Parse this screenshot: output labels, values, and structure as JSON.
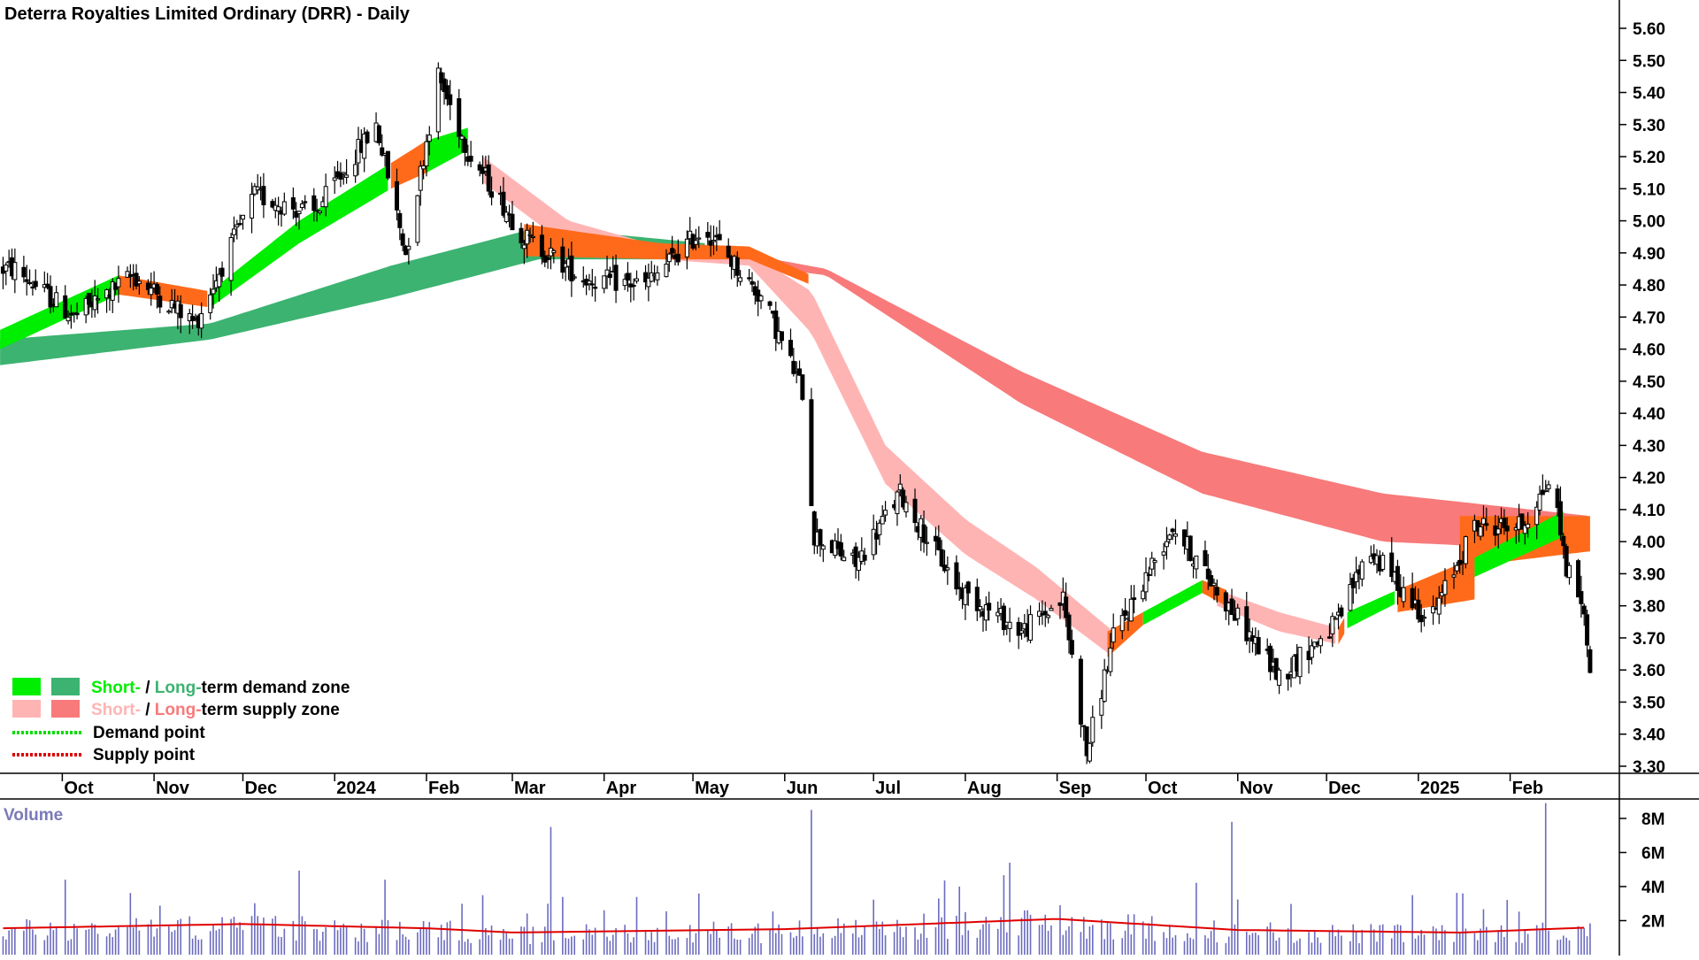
{
  "chart_data": {
    "type": "candlestick",
    "title": "Deterra Royalties Limited Ordinary (DRR) - Daily",
    "price_axis": {
      "ticks": [
        "5.60",
        "5.50",
        "5.40",
        "5.30",
        "5.20",
        "5.10",
        "5.00",
        "4.90",
        "4.80",
        "4.70",
        "4.60",
        "4.50",
        "4.40",
        "4.30",
        "4.20",
        "4.10",
        "4.00",
        "3.90",
        "3.80",
        "3.70",
        "3.60",
        "3.50",
        "3.40",
        "3.30"
      ],
      "range": [
        3.27,
        5.66
      ]
    },
    "x_axis": {
      "labels": [
        "Oct",
        "Nov",
        "Dec",
        "2024",
        "Feb",
        "Mar",
        "Apr",
        "May",
        "Jun",
        "Jul",
        "Aug",
        "Sep",
        "Oct",
        "Nov",
        "Dec",
        "2025",
        "Feb"
      ]
    },
    "volume_panel": {
      "label": "Volume",
      "ticks": [
        "8M",
        "6M",
        "4M",
        "2M"
      ],
      "range": [
        0,
        9
      ]
    },
    "price_anchors": [
      {
        "date": "2023-09-15",
        "close": 4.85
      },
      {
        "date": "2023-10-05",
        "close": 4.7
      },
      {
        "date": "2023-10-25",
        "close": 4.83
      },
      {
        "date": "2023-11-15",
        "close": 4.68
      },
      {
        "date": "2023-12-05",
        "close": 5.08
      },
      {
        "date": "2023-12-25",
        "close": 5.02
      },
      {
        "date": "2024-01-15",
        "close": 5.3
      },
      {
        "date": "2024-01-25",
        "close": 4.9
      },
      {
        "date": "2024-02-05",
        "close": 5.45
      },
      {
        "date": "2024-02-15",
        "close": 5.22
      },
      {
        "date": "2024-03-05",
        "close": 4.95
      },
      {
        "date": "2024-03-25",
        "close": 4.82
      },
      {
        "date": "2024-04-15",
        "close": 4.8
      },
      {
        "date": "2024-05-05",
        "close": 4.98
      },
      {
        "date": "2024-05-25",
        "close": 4.75
      },
      {
        "date": "2024-06-07",
        "close": 4.47
      },
      {
        "date": "2024-06-11",
        "close": 4.02
      },
      {
        "date": "2024-06-25",
        "close": 3.93
      },
      {
        "date": "2024-07-10",
        "close": 4.15
      },
      {
        "date": "2024-07-30",
        "close": 3.85
      },
      {
        "date": "2024-08-20",
        "close": 3.72
      },
      {
        "date": "2024-09-03",
        "close": 3.82
      },
      {
        "date": "2024-09-11",
        "close": 3.34
      },
      {
        "date": "2024-09-20",
        "close": 3.7
      },
      {
        "date": "2024-10-10",
        "close": 4.05
      },
      {
        "date": "2024-10-25",
        "close": 3.85
      },
      {
        "date": "2024-11-15",
        "close": 3.58
      },
      {
        "date": "2024-12-05",
        "close": 3.75
      },
      {
        "date": "2024-12-15",
        "close": 3.98
      },
      {
        "date": "2025-01-05",
        "close": 3.75
      },
      {
        "date": "2025-01-20",
        "close": 4.05
      },
      {
        "date": "2025-02-05",
        "close": 4.05
      },
      {
        "date": "2025-02-15",
        "close": 4.2
      },
      {
        "date": "2025-02-20",
        "close": 3.92
      },
      {
        "date": "2025-02-25",
        "close": 3.82
      },
      {
        "date": "2025-02-28",
        "close": 3.62
      }
    ],
    "bands": [
      {
        "kind": "long-term demand zone",
        "color": "#3cb371",
        "segments": [
          {
            "from": "2023-09-10",
            "to": "2024-05-05",
            "upper": [
              [
                "2023-09-10",
                4.63
              ],
              [
                "2023-11-20",
                4.68
              ],
              [
                "2024-01-20",
                4.86
              ],
              [
                "2024-03-10",
                4.98
              ],
              [
                "2024-05-05",
                4.93
              ]
            ],
            "lower": [
              [
                "2023-09-10",
                4.55
              ],
              [
                "2023-11-20",
                4.63
              ],
              [
                "2024-01-20",
                4.76
              ],
              [
                "2024-03-10",
                4.88
              ],
              [
                "2024-05-05",
                4.88
              ]
            ]
          }
        ]
      },
      {
        "kind": "long-term supply zone",
        "color": "#f87a7a",
        "segments": [
          {
            "from": "2024-05-05",
            "to": "2025-02-28",
            "upper": [
              [
                "2024-05-05",
                4.92
              ],
              [
                "2024-06-15",
                4.85
              ],
              [
                "2024-08-20",
                4.53
              ],
              [
                "2024-10-20",
                4.28
              ],
              [
                "2024-12-20",
                4.15
              ],
              [
                "2025-02-28",
                4.08
              ]
            ],
            "lower": [
              [
                "2024-05-05",
                4.88
              ],
              [
                "2024-06-15",
                4.83
              ],
              [
                "2024-08-20",
                4.43
              ],
              [
                "2024-10-20",
                4.15
              ],
              [
                "2024-12-20",
                4.0
              ],
              [
                "2025-02-28",
                3.97
              ]
            ]
          }
        ]
      },
      {
        "kind": "short-term demand zone",
        "color": "#00ee00",
        "segments": [
          {
            "from": "2023-09-10",
            "to": "2023-10-20",
            "upper": [
              [
                "2023-09-10",
                4.66
              ],
              [
                "2023-10-20",
                4.83
              ]
            ],
            "lower": [
              [
                "2023-09-10",
                4.6
              ],
              [
                "2023-10-20",
                4.77
              ]
            ]
          },
          {
            "from": "2023-11-20",
            "to": "2024-01-20",
            "upper": [
              [
                "2023-11-20",
                4.78
              ],
              [
                "2023-12-20",
                5.0
              ],
              [
                "2024-01-20",
                5.18
              ]
            ],
            "lower": [
              [
                "2023-11-20",
                4.73
              ],
              [
                "2023-12-20",
                4.93
              ],
              [
                "2024-01-20",
                5.1
              ]
            ]
          },
          {
            "from": "2024-02-01",
            "to": "2024-02-15",
            "upper": [
              [
                "2024-02-01",
                5.25
              ],
              [
                "2024-02-15",
                5.29
              ]
            ],
            "lower": [
              [
                "2024-02-01",
                5.15
              ],
              [
                "2024-02-15",
                5.22
              ]
            ]
          },
          {
            "from": "2024-09-30",
            "to": "2024-10-20",
            "upper": [
              [
                "2024-09-30",
                3.78
              ],
              [
                "2024-10-20",
                3.88
              ]
            ],
            "lower": [
              [
                "2024-09-30",
                3.74
              ],
              [
                "2024-10-20",
                3.84
              ]
            ]
          },
          {
            "from": "2024-12-08",
            "to": "2024-12-25",
            "upper": [
              [
                "2024-12-08",
                3.78
              ],
              [
                "2024-12-25",
                3.85
              ]
            ],
            "lower": [
              [
                "2024-12-08",
                3.73
              ],
              [
                "2024-12-25",
                3.81
              ]
            ]
          },
          {
            "from": "2025-01-20",
            "to": "2025-02-20",
            "upper": [
              [
                "2025-01-20",
                3.95
              ],
              [
                "2025-02-20",
                4.1
              ]
            ],
            "lower": [
              [
                "2025-01-20",
                3.89
              ],
              [
                "2025-02-20",
                4.02
              ]
            ]
          }
        ]
      },
      {
        "kind": "short-term supply zone",
        "color": "#ffb4b4",
        "segments": [
          {
            "from": "2024-02-20",
            "to": "2024-09-20",
            "upper": [
              [
                "2024-02-20",
                5.2
              ],
              [
                "2024-03-20",
                5.0
              ],
              [
                "2024-04-20",
                4.92
              ],
              [
                "2024-05-20",
                4.9
              ],
              [
                "2024-06-10",
                4.78
              ],
              [
                "2024-07-05",
                4.3
              ],
              [
                "2024-08-01",
                4.07
              ],
              [
                "2024-08-25",
                3.92
              ],
              [
                "2024-09-20",
                3.72
              ]
            ],
            "lower": [
              [
                "2024-02-20",
                5.12
              ],
              [
                "2024-03-20",
                4.92
              ],
              [
                "2024-04-20",
                4.88
              ],
              [
                "2024-05-20",
                4.86
              ],
              [
                "2024-06-10",
                4.65
              ],
              [
                "2024-07-05",
                4.18
              ],
              [
                "2024-08-01",
                3.96
              ],
              [
                "2024-08-25",
                3.82
              ],
              [
                "2024-09-20",
                3.64
              ]
            ]
          },
          {
            "from": "2024-10-25",
            "to": "2024-12-05",
            "upper": [
              [
                "2024-10-25",
                3.85
              ],
              [
                "2024-11-15",
                3.78
              ],
              [
                "2024-12-05",
                3.73
              ]
            ],
            "lower": [
              [
                "2024-10-25",
                3.8
              ],
              [
                "2024-11-15",
                3.72
              ],
              [
                "2024-12-05",
                3.68
              ]
            ]
          }
        ]
      },
      {
        "kind": "transition",
        "color": "#ff6a1a",
        "segments": [
          {
            "from": "2023-10-20",
            "to": "2023-11-20",
            "upper": [
              [
                "2023-10-20",
                4.83
              ],
              [
                "2023-11-20",
                4.78
              ]
            ],
            "lower": [
              [
                "2023-10-20",
                4.77
              ],
              [
                "2023-11-20",
                4.73
              ]
            ]
          },
          {
            "from": "2024-01-20",
            "to": "2024-02-01",
            "upper": [
              [
                "2024-01-20",
                5.18
              ],
              [
                "2024-02-01",
                5.25
              ]
            ],
            "lower": [
              [
                "2024-01-20",
                5.1
              ],
              [
                "2024-02-01",
                5.15
              ]
            ]
          },
          {
            "from": "2024-03-05",
            "to": "2024-06-10",
            "upper": [
              [
                "2024-03-05",
                4.99
              ],
              [
                "2024-04-20",
                4.93
              ],
              [
                "2024-05-20",
                4.92
              ],
              [
                "2024-06-10",
                4.83
              ]
            ],
            "lower": [
              [
                "2024-03-05",
                4.89
              ],
              [
                "2024-04-20",
                4.88
              ],
              [
                "2024-05-20",
                4.88
              ],
              [
                "2024-06-10",
                4.8
              ]
            ]
          },
          {
            "from": "2024-09-18",
            "to": "2024-09-30",
            "upper": [
              [
                "2024-09-18",
                3.72
              ],
              [
                "2024-09-30",
                3.78
              ]
            ],
            "lower": [
              [
                "2024-09-18",
                3.64
              ],
              [
                "2024-09-30",
                3.74
              ]
            ]
          },
          {
            "from": "2024-10-20",
            "to": "2024-10-28",
            "upper": [
              [
                "2024-10-20",
                3.88
              ],
              [
                "2024-10-28",
                3.85
              ]
            ],
            "lower": [
              [
                "2024-10-20",
                3.84
              ],
              [
                "2024-10-28",
                3.8
              ]
            ]
          },
          {
            "from": "2024-12-05",
            "to": "2024-12-08",
            "upper": [
              [
                "2024-12-05",
                3.73
              ],
              [
                "2024-12-08",
                3.78
              ]
            ],
            "lower": [
              [
                "2024-12-05",
                3.68
              ],
              [
                "2024-12-08",
                3.73
              ]
            ]
          },
          {
            "from": "2024-12-25",
            "to": "2025-01-20",
            "upper": [
              [
                "2024-12-25",
                3.85
              ],
              [
                "2025-01-20",
                3.95
              ]
            ],
            "lower": [
              [
                "2024-12-25",
                3.78
              ],
              [
                "2025-01-20",
                3.82
              ]
            ]
          },
          {
            "from": "2025-01-15",
            "to": "2025-02-28",
            "upper": [
              [
                "2025-01-15",
                4.08
              ],
              [
                "2025-02-28",
                4.08
              ]
            ],
            "lower": [
              [
                "2025-01-15",
                3.92
              ],
              [
                "2025-02-28",
                3.97
              ]
            ]
          }
        ]
      }
    ],
    "volume_average": [
      {
        "date": "2023-09-10",
        "value": 1.55
      },
      {
        "date": "2023-12-01",
        "value": 1.8
      },
      {
        "date": "2024-02-01",
        "value": 1.55
      },
      {
        "date": "2024-03-01",
        "value": 1.3
      },
      {
        "date": "2024-06-01",
        "value": 1.5
      },
      {
        "date": "2024-09-01",
        "value": 2.1
      },
      {
        "date": "2024-11-01",
        "value": 1.45
      },
      {
        "date": "2025-01-15",
        "value": 1.3
      },
      {
        "date": "2025-02-28",
        "value": 1.6
      }
    ],
    "volume_spikes": [
      {
        "date": "2023-10-03",
        "value": 4.4
      },
      {
        "date": "2024-03-15",
        "value": 7.5
      },
      {
        "date": "2024-06-11",
        "value": 8.5
      },
      {
        "date": "2024-07-31",
        "value": 4.0
      },
      {
        "date": "2024-09-01",
        "value": 2.9
      },
      {
        "date": "2024-10-31",
        "value": 7.8
      },
      {
        "date": "2024-12-31",
        "value": 3.5
      },
      {
        "date": "2025-02-14",
        "value": 8.9
      }
    ],
    "legend": [
      {
        "short": "Short-",
        "sep": " / ",
        "long": "Long-",
        "rest": "term demand zone",
        "short_color": "#00ee00",
        "long_color": "#3cb371"
      },
      {
        "short": "Short-",
        "sep": " / ",
        "long": "Long-",
        "rest": "term supply zone",
        "short_color": "#ffb4b4",
        "long_color": "#f87a7a"
      },
      {
        "label": "Demand point",
        "color": "#00dd00"
      },
      {
        "label": "Supply point",
        "color": "#dd0000"
      }
    ],
    "colors": {
      "candle_up": "#ffffff",
      "candle_down": "#000000",
      "wick": "#000000",
      "volume_bar": "#6b6bbf",
      "volume_avg": "#e00000",
      "grid": "none"
    },
    "grid": false
  }
}
